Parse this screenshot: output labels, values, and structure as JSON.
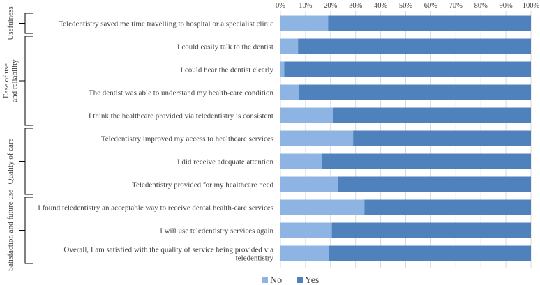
{
  "chart_data": {
    "type": "bar",
    "orientation": "horizontal",
    "stacked": true,
    "percent_axis": true,
    "xlim": [
      0,
      100
    ],
    "ticks": [
      "0%",
      "10%",
      "20%",
      "30%",
      "40%",
      "50%",
      "60%",
      "70%",
      "80%",
      "90%",
      "100%"
    ],
    "groups": [
      {
        "name": "Usefulness",
        "label_lines": [
          "Usefulness"
        ],
        "count": 1
      },
      {
        "name": "Ease of use and reliability",
        "label_lines": [
          "Ease of use",
          "and reliability"
        ],
        "count": 4
      },
      {
        "name": "Quality of care",
        "label_lines": [
          "Quality  of care"
        ],
        "count": 3
      },
      {
        "name": "Satisfaction and future use",
        "label_lines": [
          "Satisfaction and future use"
        ],
        "count": 3
      }
    ],
    "categories": [
      [
        "Teledentistry saved me time travelling to hospital or a specialist clinic"
      ],
      [
        "I could easily talk to the dentist"
      ],
      [
        "I could hear the dentist clearly"
      ],
      [
        "The dentist was able to understand my health-care condition"
      ],
      [
        "I think the healthcare provided via teledentistry is consistent"
      ],
      [
        "Teledentistry improved my access to healthcare services"
      ],
      [
        "I did receive adequate attention"
      ],
      [
        "Teledentistry provided for my healthcare need"
      ],
      [
        "I found teledentistry an acceptable way to receive dental health-care services"
      ],
      [
        "I will use teledentistry services again"
      ],
      [
        "Overall, I am satisfied with the quality of service being provided via",
        "teledentistry"
      ]
    ],
    "series": [
      {
        "name": "No",
        "color": "#8eb4e3",
        "values": [
          19,
          7,
          1.5,
          7.5,
          21,
          29,
          16.5,
          23,
          33.5,
          20.5,
          19.5
        ]
      },
      {
        "name": "Yes",
        "color": "#4f81bd",
        "values": [
          81,
          93,
          98.5,
          92.5,
          79,
          71,
          83.5,
          77,
          66.5,
          79.5,
          80.5
        ]
      }
    ],
    "legend_position": "bottom"
  }
}
